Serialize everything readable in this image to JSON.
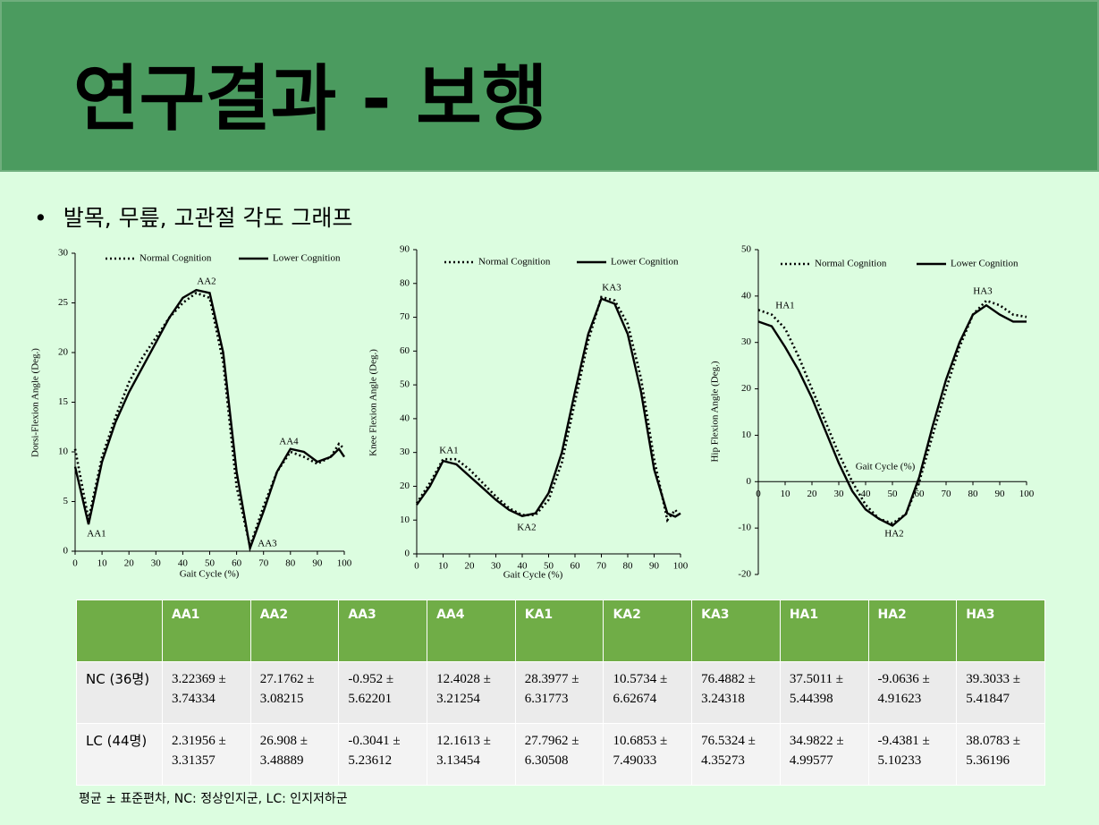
{
  "header": {
    "title": "연구결과 - 보행"
  },
  "bullet": "발목, 무릎, 고관절 각도 그래프",
  "chart_data": [
    {
      "type": "line",
      "ylabel": "Dorsi-Flexion Angle (Deg.)",
      "xlabel": "Gait Cycle (%)",
      "x": [
        0,
        5,
        10,
        15,
        20,
        25,
        30,
        35,
        40,
        45,
        50,
        55,
        60,
        65,
        70,
        75,
        80,
        85,
        90,
        95,
        98,
        100
      ],
      "series": [
        {
          "name": "Normal Cognition",
          "color": "#000000",
          "line_style": "dotted",
          "values": [
            10.3,
            3.2,
            9.5,
            13.5,
            17,
            19.5,
            21.5,
            23.5,
            25,
            26,
            25.5,
            19,
            6.5,
            0.5,
            4.5,
            8,
            10,
            9.5,
            8.8,
            9.5,
            10.8,
            10.3
          ]
        },
        {
          "name": "Lower Cognition",
          "color": "#000000",
          "line_style": "solid",
          "values": [
            8.5,
            2.7,
            9,
            13,
            16,
            18.5,
            21,
            23.5,
            25.5,
            26.3,
            26,
            20,
            8,
            0.3,
            4,
            8,
            10.3,
            10,
            9,
            9.5,
            10.3,
            9.5
          ]
        }
      ],
      "annotations": [
        "AA1",
        "AA2",
        "AA3",
        "AA4"
      ],
      "xlim": [
        0,
        100
      ],
      "xticks": [
        0,
        10,
        20,
        30,
        40,
        50,
        60,
        70,
        80,
        90,
        100
      ],
      "ylim": [
        0,
        30
      ],
      "yticks": [
        0,
        5,
        10,
        15,
        20,
        25,
        30
      ]
    },
    {
      "type": "line",
      "ylabel": "Knee Flexion Angle (Deg.)",
      "xlabel": "Gait Cycle (%)",
      "x": [
        0,
        5,
        10,
        15,
        20,
        25,
        30,
        35,
        40,
        45,
        50,
        55,
        60,
        65,
        70,
        75,
        80,
        85,
        90,
        95,
        98,
        100
      ],
      "series": [
        {
          "name": "Normal Cognition",
          "color": "#000000",
          "line_style": "dotted",
          "values": [
            15,
            21,
            28,
            28,
            25,
            21,
            17,
            13.5,
            11.5,
            11.5,
            16,
            27,
            45,
            63,
            76,
            75,
            68,
            52,
            28,
            10,
            13,
            11
          ]
        },
        {
          "name": "Lower Cognition",
          "color": "#000000",
          "line_style": "solid",
          "values": [
            14.5,
            20,
            27.5,
            26.5,
            23,
            19.5,
            16,
            13,
            11.2,
            12,
            18,
            30,
            48,
            65,
            75.5,
            74,
            65,
            48,
            25,
            12,
            11,
            12
          ]
        }
      ],
      "annotations": [
        "KA1",
        "KA2",
        "KA3"
      ],
      "xlim": [
        0,
        100
      ],
      "xticks": [
        0,
        10,
        20,
        30,
        40,
        50,
        60,
        70,
        80,
        90,
        100
      ],
      "ylim": [
        0,
        90
      ],
      "yticks": [
        0,
        10,
        20,
        30,
        40,
        50,
        60,
        70,
        80,
        90
      ]
    },
    {
      "type": "line",
      "ylabel": "Hip Flexion Angle (Deg.)",
      "xlabel": "Gait Cycle (%)",
      "x": [
        0,
        5,
        10,
        15,
        20,
        25,
        30,
        35,
        40,
        45,
        50,
        55,
        60,
        65,
        70,
        75,
        80,
        85,
        90,
        95,
        100
      ],
      "series": [
        {
          "name": "Normal Cognition",
          "color": "#000000",
          "line_style": "dotted",
          "values": [
            37,
            36,
            33,
            27,
            20,
            13,
            6,
            0,
            -5,
            -8,
            -9,
            -7,
            0,
            10,
            20,
            29,
            36,
            39,
            38,
            36,
            35.5
          ]
        },
        {
          "name": "Lower Cognition",
          "color": "#000000",
          "line_style": "solid",
          "values": [
            34.5,
            33.5,
            29,
            24,
            18,
            11,
            4,
            -2,
            -6,
            -8,
            -9.5,
            -7,
            1,
            12,
            22,
            30,
            36,
            38,
            36,
            34.5,
            34.5
          ]
        }
      ],
      "annotations": [
        "HA1",
        "HA2",
        "HA3"
      ],
      "xlim": [
        0,
        100
      ],
      "xticks": [
        0,
        10,
        20,
        30,
        40,
        50,
        60,
        70,
        80,
        90,
        100
      ],
      "ylim": [
        -20,
        50
      ],
      "yticks": [
        -20,
        -10,
        0,
        10,
        20,
        30,
        40,
        50
      ]
    }
  ],
  "table": {
    "header": [
      "AA1",
      "AA2",
      "AA3",
      "AA4",
      "KA1",
      "KA2",
      "KA3",
      "HA1",
      "HA2",
      "HA3"
    ],
    "rows": [
      [
        "NC (36명)",
        "3.22369 ± 3.74334",
        "27.1762 ± 3.08215",
        "-0.952 ± 5.62201",
        "12.4028 ± 3.21254",
        "28.3977 ± 6.31773",
        "10.5734 ± 6.62674",
        "76.4882 ± 3.24318",
        "37.5011 ± 5.44398",
        "-9.0636 ± 4.91623",
        "39.3033 ± 5.41847"
      ],
      [
        "LC (44명)",
        "2.31956 ± 3.31357",
        "26.908 ± 3.48889",
        "-0.3041 ± 5.23612",
        "12.1613 ± 3.13454",
        "27.7962 ± 6.30508",
        "10.6853 ± 7.49033",
        "76.5324 ± 4.35273",
        "34.9822 ± 4.99577",
        "-9.4381 ± 5.10233",
        "38.0783 ± 5.36196"
      ]
    ]
  },
  "footnote": "평균 ± 표준편차, NC: 정상인지군, LC: 인지저하군"
}
